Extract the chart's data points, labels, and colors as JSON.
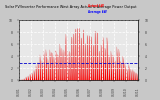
{
  "title": "Solar PV/Inverter Performance West Array Actual & Average Power Output",
  "plot_bg_color": "#e8e8e8",
  "grid_color": "#ffffff",
  "area_color": "#ff0000",
  "area_edge_color": "#dd0000",
  "avg_line_color": "#0000cc",
  "avg_line_style": "--",
  "avg_value": 0.28,
  "ylim": [
    0,
    1.0
  ],
  "num_points": 600,
  "legend_actual_color": "#ff0000",
  "legend_avg_color": "#0000ff",
  "legend_actual_label": "Actual kW",
  "legend_avg_label": "Average kW",
  "outer_bg": "#c8c8c8",
  "num_days": 60,
  "title_fontsize": 2.5,
  "tick_fontsize": 2.2
}
